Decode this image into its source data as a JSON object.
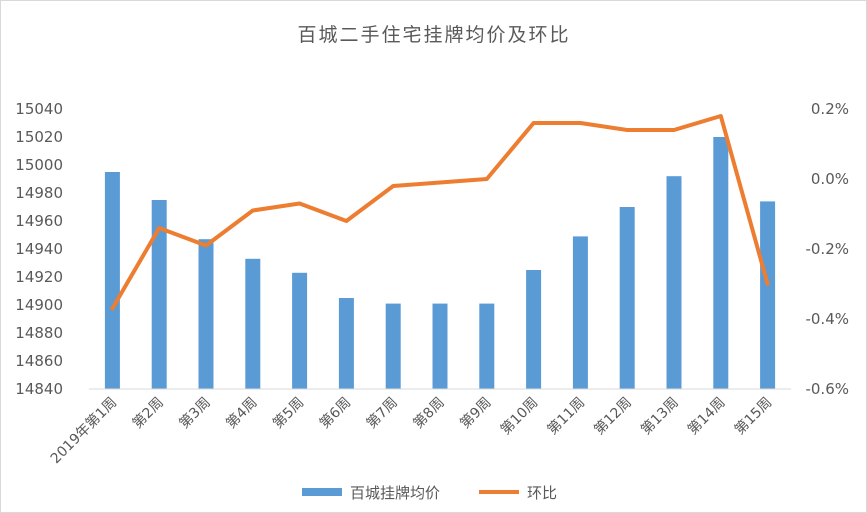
{
  "chart_data": {
    "type": "bar+line",
    "title": "百城二手住宅挂牌均价及环比",
    "categories": [
      "2019年第1周",
      "第2周",
      "第3周",
      "第4周",
      "第5周",
      "第6周",
      "第7周",
      "第8周",
      "第9周",
      "第10周",
      "第11周",
      "第12周",
      "第13周",
      "第14周",
      "第15周"
    ],
    "series": [
      {
        "name": "百城挂牌均价",
        "type": "bar",
        "axis": "left",
        "color": "#5b9bd5",
        "values": [
          14995,
          14975,
          14947,
          14933,
          14923,
          14905,
          14901,
          14901,
          14901,
          14925,
          14949,
          14970,
          14992,
          15020,
          14974
        ]
      },
      {
        "name": "环比",
        "type": "line",
        "axis": "right",
        "color": "#ed7d31",
        "values": [
          -0.37,
          -0.14,
          -0.19,
          -0.09,
          -0.07,
          -0.12,
          -0.02,
          -0.01,
          0.0,
          0.16,
          0.16,
          0.14,
          0.14,
          0.18,
          -0.3
        ]
      }
    ],
    "y_left": {
      "min": 14840,
      "max": 15040,
      "step": 20,
      "ticks": [
        "14840",
        "14860",
        "14880",
        "14900",
        "14920",
        "14940",
        "14960",
        "14980",
        "15000",
        "15020",
        "15040"
      ]
    },
    "y_right": {
      "min": -0.6,
      "max": 0.2,
      "step": 0.2,
      "ticks": [
        "-0.6%",
        "-0.4%",
        "-0.2%",
        "0.0%",
        "0.2%"
      ]
    },
    "grid": false,
    "legend": "bottom"
  }
}
